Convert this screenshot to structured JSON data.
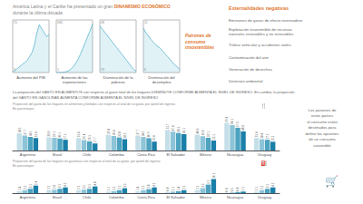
{
  "annotations": [
    {
      "text": "América Latina y el Caribe ha presentado un gran ",
      "color": "#888888"
    },
    {
      "text": "DINAMISMO ECONÓMICO",
      "color": "#e07830"
    },
    {
      "text": "durante la última década",
      "color": "#888888"
    },
    {
      "text": "Patrones de\nconsumo\ninsostenibles",
      "color": "#e07830"
    },
    {
      "text": "Externalidades negativas",
      "color": "#e07830"
    },
    {
      "text": "Emisiones de gases de efecto invernadero",
      "color": "#666666"
    },
    {
      "text": "Explotación insostenible de recursos\nnaturales renovables y no renovables",
      "color": "#666666"
    },
    {
      "text": "Tráfico vehicular y accidentes viales",
      "color": "#666666"
    },
    {
      "text": "Contaminación del aire",
      "color": "#666666"
    },
    {
      "text": "Generación de desechos",
      "color": "#666666"
    },
    {
      "text": "Deterioro ambiental",
      "color": "#666666"
    },
    {
      "text": "La proporción del GASTO EN ALIMENTOS con respecto al gasto total de los hogares DISMINUYE CONFORME AUMENTA EL NIVEL DE INGRESO. En cambio, la proporción",
      "color": "#666666"
    },
    {
      "text": "del GASTO EN GASOLINAS AUMENTA CONFORME AUMENTA EL NIVEL DE INGRESO",
      "color": "#666666"
    },
    {
      "text": "Los patrones de\nestos países\nal consumo están\ndestinados para\ndefinir las opciones\nde un consumo\nsostenible",
      "color": "#666666"
    },
    {
      "text": "🛒",
      "color": "#666666"
    }
  ],
  "chart_data": [
    {
      "type": "area",
      "xlabel": "Aumento del PIB",
      "categories": [
        null,
        null,
        null,
        null,
        null,
        null,
        null,
        null,
        null,
        null,
        null,
        null,
        null,
        null,
        null,
        null
      ],
      "values": [
        3.1,
        3.5,
        4.0,
        4.5,
        5.0,
        5.5,
        6.0,
        7.0,
        8.0,
        10.0,
        13.0,
        15.0,
        14.0,
        13.0,
        12.0,
        12.5
      ],
      "color": "#5ab5cf",
      "ylim": [
        2.945,
        16.2
      ],
      "tick_labels": false,
      "grid": false,
      "annotations": [
        "15",
        "3"
      ]
    },
    {
      "type": "area",
      "xlabel": "Aumento de las\nexportaciones",
      "categories": [
        null,
        null,
        null,
        null,
        null,
        null,
        null,
        null,
        null,
        null,
        null,
        null,
        null,
        null,
        null,
        null
      ],
      "values": [
        1,
        2,
        3,
        5,
        10,
        20,
        40,
        70,
        110,
        160,
        220,
        290,
        360,
        430,
        500,
        580
      ],
      "color": "#5ab5cf",
      "ylim": [
        0.95,
        626.4
      ],
      "tick_labels": false,
      "grid": false,
      "annotations": [
        "580",
        "1"
      ]
    },
    {
      "type": "area",
      "xlabel": "Disminución de la\npobreza",
      "categories": [
        null,
        null,
        null,
        null,
        null,
        null,
        null,
        null,
        null,
        null,
        null,
        null,
        null,
        null,
        null,
        null
      ],
      "values": [
        48,
        46,
        44,
        42,
        40,
        38,
        36,
        34,
        32,
        30,
        28,
        26,
        24,
        22,
        20,
        19
      ],
      "color": "#5ab5cf",
      "ylim": [
        18.05,
        51.84
      ],
      "tick_labels": false,
      "grid": false,
      "annotations": [
        "48",
        "19"
      ]
    },
    {
      "type": "area",
      "xlabel": "Disminución del\ndesempleo",
      "categories": [
        null,
        null,
        null,
        null,
        null,
        null,
        null,
        null,
        null,
        null,
        null,
        null,
        null,
        null,
        null,
        null
      ],
      "values": [
        11,
        10.5,
        10.2,
        9.8,
        9.5,
        9.2,
        9.0,
        8.8,
        8.5,
        8.2,
        7.9,
        7.6,
        7.3,
        7.0,
        6.8,
        6.5
      ],
      "color": "#5ab5cf",
      "ylim": [
        6.175,
        11.88
      ],
      "tick_labels": false,
      "grid": false,
      "annotations": [
        "11",
        "6"
      ]
    },
    {
      "type": "bar",
      "title": "Proporción del gasto de los hogares en alimentos y bebidas con respecto al total de su gasto, por quintil de ingreso.\nEn porcentajes",
      "categories": [
        "Argentina",
        "Brasil",
        "Chile",
        "Colombia",
        "Costa Rica",
        "El Salvador",
        "México",
        "Nicaragua",
        "Uruguay"
      ],
      "series": [
        {
          "color": "#c5dfe8",
          "values": [
            43.1,
            33.0,
            31.4,
            39.4,
            37.7,
            51.7,
            40.0,
            69.4,
            31.4
          ],
          "value_labels": [
            "43.1",
            "33.0",
            "31.4",
            "39.4",
            "37.7",
            "51.7",
            "40.0",
            "69.4",
            "31.4"
          ]
        },
        {
          "color": "#8dc4d8",
          "values": [
            37.7,
            32.1,
            26.4,
            36.4,
            34.1,
            47.4,
            36.0,
            64.1,
            28.4
          ],
          "value_labels": [
            "37.7",
            "32.1",
            "26.4",
            "36.4",
            "34.1",
            "47.4",
            "36.0",
            "64.1",
            "28.4"
          ]
        },
        {
          "color": "#4da3c0",
          "values": [
            34.1,
            30.1,
            23.1,
            32.8,
            30.9,
            44.1,
            32.1,
            57.3,
            27.1
          ],
          "value_labels": [
            "34.1",
            "30.1",
            "23.1",
            "32.8",
            "30.9",
            "44.1",
            "32.1",
            "57.3",
            "27.1"
          ]
        },
        {
          "color": "#1a7fa8",
          "values": [
            31.4,
            27.1,
            17.7,
            28.5,
            22.4,
            41.1,
            25.1,
            48.3,
            22.1
          ],
          "value_labels": [
            "31.4",
            "27.1",
            "17.7",
            "28.5",
            "22.4",
            "41.1",
            "25.1",
            "48.3",
            "22.1"
          ]
        }
      ],
      "ylim": [
        0,
        86.75
      ],
      "tick_labels": "x",
      "grid": false,
      "data_labels": true,
      "annotations": [
        "🍴"
      ]
    },
    {
      "type": "bar",
      "title": "Proporción del gasto de los hogares en gasolinas con respecto al total de su gasto, por quintil de ingreso.\nEn porcentajes",
      "categories": [
        "Argentina",
        "Brasil",
        "Chile",
        "Colombia",
        "Costa Rica",
        "El Salvador",
        "México",
        "Nicaragua",
        "Uruguay"
      ],
      "series": [
        {
          "color": "#c5dfe8",
          "values": [
            1.4,
            2.1,
            2.1,
            1.1,
            1.4,
            0.8,
            2.1,
            0.4,
            1.1
          ]
        },
        {
          "color": "#8dc4d8",
          "values": [
            2.1,
            2.4,
            2.5,
            1.5,
            2.1,
            1.1,
            3.5,
            0.5,
            2.1
          ]
        },
        {
          "color": "#4da3c0",
          "values": [
            3.1,
            3.1,
            3.1,
            2.1,
            2.8,
            1.4,
            6.1,
            0.8,
            3.1
          ]
        },
        {
          "color": "#1a7fa8",
          "values": [
            5.4,
            4.1,
            4.8,
            3.5,
            4.1,
            2.1,
            10.1,
            1.1,
            4.1
          ]
        }
      ],
      "ylim": [
        0,
        13.635
      ],
      "tick_labels": "x",
      "grid": false,
      "data_labels": true,
      "annotations": [
        "⛽"
      ]
    }
  ]
}
